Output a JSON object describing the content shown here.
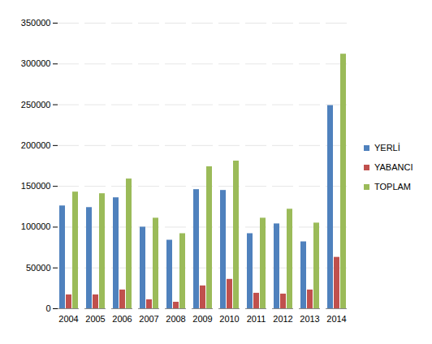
{
  "chart_data": {
    "type": "bar",
    "categories": [
      "2004",
      "2005",
      "2006",
      "2007",
      "2008",
      "2009",
      "2010",
      "2011",
      "2012",
      "2013",
      "2014"
    ],
    "series": [
      {
        "name": "YERLİ",
        "color": "#4f81bd",
        "values": [
          126000,
          124000,
          136000,
          100000,
          84000,
          146000,
          145000,
          92000,
          104000,
          82000,
          249000
        ]
      },
      {
        "name": "YABANCI",
        "color": "#c0504d",
        "values": [
          17000,
          17000,
          23000,
          11000,
          8000,
          28000,
          36000,
          19000,
          18000,
          23000,
          63000
        ]
      },
      {
        "name": "TOPLAM",
        "color": "#9bbb59",
        "values": [
          143000,
          141000,
          159000,
          111000,
          92000,
          174000,
          181000,
          111000,
          122000,
          105000,
          312000
        ]
      }
    ],
    "ylim": [
      0,
      350000
    ],
    "yticks": [
      0,
      50000,
      100000,
      150000,
      200000,
      250000,
      300000,
      350000
    ],
    "grid": true,
    "legend": "right"
  }
}
